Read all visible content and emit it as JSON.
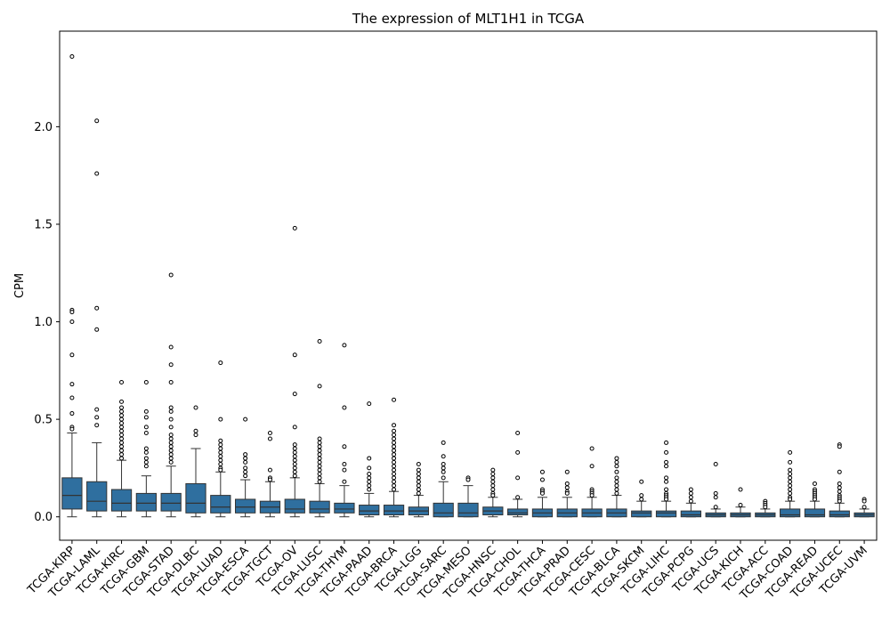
{
  "chart_data": {
    "type": "box",
    "title": "The expression of MLT1H1 in TCGA",
    "xlabel": "",
    "ylabel": "CPM",
    "ylim": [
      -0.12,
      2.49
    ],
    "y_ticks": [
      "0.0",
      "0.5",
      "1.0",
      "1.5",
      "2.0"
    ],
    "box_color": "#2f6f9f",
    "line_color": "#333333",
    "categories": [
      "TCGA-KIRP",
      "TCGA-LAML",
      "TCGA-KIRC",
      "TCGA-GBM",
      "TCGA-STAD",
      "TCGA-DLBC",
      "TCGA-LUAD",
      "TCGA-ESCA",
      "TCGA-TGCT",
      "TCGA-OV",
      "TCGA-LUSC",
      "TCGA-THYM",
      "TCGA-PAAD",
      "TCGA-BRCA",
      "TCGA-LGG",
      "TCGA-SARC",
      "TCGA-MESO",
      "TCGA-HNSC",
      "TCGA-CHOL",
      "TCGA-THCA",
      "TCGA-PRAD",
      "TCGA-CESC",
      "TCGA-BLCA",
      "TCGA-SKCM",
      "TCGA-LIHC",
      "TCGA-PCPG",
      "TCGA-UCS",
      "TCGA-KICH",
      "TCGA-ACC",
      "TCGA-COAD",
      "TCGA-READ",
      "TCGA-UCEC",
      "TCGA-UVM"
    ],
    "boxes": [
      {
        "min": 0.0,
        "q1": 0.04,
        "median": 0.11,
        "q3": 0.2,
        "max": 0.43,
        "outliers": [
          2.36,
          1.06,
          1.05,
          1.0,
          0.83,
          0.68,
          0.61,
          0.53,
          0.46,
          0.45
        ]
      },
      {
        "min": 0.0,
        "q1": 0.03,
        "median": 0.08,
        "q3": 0.18,
        "max": 0.38,
        "outliers": [
          2.03,
          1.76,
          1.07,
          0.96,
          0.55,
          0.51,
          0.47
        ]
      },
      {
        "min": 0.0,
        "q1": 0.03,
        "median": 0.07,
        "q3": 0.14,
        "max": 0.29,
        "outliers": [
          0.69,
          0.59,
          0.56,
          0.54,
          0.52,
          0.5,
          0.48,
          0.46,
          0.44,
          0.42,
          0.4,
          0.38,
          0.36,
          0.34,
          0.32,
          0.3
        ]
      },
      {
        "min": 0.0,
        "q1": 0.03,
        "median": 0.07,
        "q3": 0.12,
        "max": 0.21,
        "outliers": [
          0.69,
          0.54,
          0.51,
          0.46,
          0.43,
          0.35,
          0.33,
          0.3,
          0.28,
          0.26
        ]
      },
      {
        "min": 0.0,
        "q1": 0.03,
        "median": 0.07,
        "q3": 0.12,
        "max": 0.26,
        "outliers": [
          1.24,
          0.87,
          0.78,
          0.69,
          0.56,
          0.54,
          0.5,
          0.46,
          0.42,
          0.4,
          0.38,
          0.36,
          0.34,
          0.32,
          0.3,
          0.28
        ]
      },
      {
        "min": 0.0,
        "q1": 0.02,
        "median": 0.07,
        "q3": 0.17,
        "max": 0.35,
        "outliers": [
          0.56,
          0.44,
          0.42
        ]
      },
      {
        "min": 0.0,
        "q1": 0.02,
        "median": 0.05,
        "q3": 0.11,
        "max": 0.23,
        "outliers": [
          0.79,
          0.5,
          0.39,
          0.37,
          0.35,
          0.33,
          0.31,
          0.29,
          0.27,
          0.25,
          0.24
        ]
      },
      {
        "min": 0.0,
        "q1": 0.02,
        "median": 0.05,
        "q3": 0.09,
        "max": 0.19,
        "outliers": [
          0.5,
          0.32,
          0.3,
          0.28,
          0.25,
          0.23,
          0.21
        ]
      },
      {
        "min": 0.0,
        "q1": 0.02,
        "median": 0.05,
        "q3": 0.08,
        "max": 0.18,
        "outliers": [
          0.43,
          0.4,
          0.24,
          0.2,
          0.19
        ]
      },
      {
        "min": 0.0,
        "q1": 0.02,
        "median": 0.04,
        "q3": 0.09,
        "max": 0.2,
        "outliers": [
          1.48,
          0.83,
          0.63,
          0.46,
          0.37,
          0.35,
          0.33,
          0.31,
          0.29,
          0.27,
          0.25,
          0.23,
          0.21
        ]
      },
      {
        "min": 0.0,
        "q1": 0.02,
        "median": 0.04,
        "q3": 0.08,
        "max": 0.17,
        "outliers": [
          0.9,
          0.67,
          0.4,
          0.38,
          0.36,
          0.34,
          0.32,
          0.3,
          0.28,
          0.26,
          0.24,
          0.22,
          0.2,
          0.18
        ]
      },
      {
        "min": 0.0,
        "q1": 0.02,
        "median": 0.04,
        "q3": 0.07,
        "max": 0.16,
        "outliers": [
          0.88,
          0.56,
          0.36,
          0.27,
          0.24,
          0.18
        ]
      },
      {
        "min": 0.0,
        "q1": 0.01,
        "median": 0.03,
        "q3": 0.06,
        "max": 0.12,
        "outliers": [
          0.58,
          0.3,
          0.25,
          0.22,
          0.2,
          0.18,
          0.16,
          0.14
        ]
      },
      {
        "min": 0.0,
        "q1": 0.01,
        "median": 0.03,
        "q3": 0.06,
        "max": 0.13,
        "outliers": [
          0.6,
          0.47,
          0.44,
          0.42,
          0.4,
          0.38,
          0.36,
          0.34,
          0.32,
          0.3,
          0.28,
          0.26,
          0.24,
          0.22,
          0.2,
          0.18,
          0.16,
          0.14
        ]
      },
      {
        "min": 0.0,
        "q1": 0.01,
        "median": 0.03,
        "q3": 0.05,
        "max": 0.11,
        "outliers": [
          0.27,
          0.24,
          0.22,
          0.2,
          0.18,
          0.16,
          0.14,
          0.12
        ]
      },
      {
        "min": 0.0,
        "q1": 0.0,
        "median": 0.02,
        "q3": 0.07,
        "max": 0.18,
        "outliers": [
          0.38,
          0.31,
          0.27,
          0.25,
          0.23,
          0.2
        ]
      },
      {
        "min": 0.0,
        "q1": 0.0,
        "median": 0.02,
        "q3": 0.07,
        "max": 0.16,
        "outliers": [
          0.2,
          0.19
        ]
      },
      {
        "min": 0.0,
        "q1": 0.01,
        "median": 0.03,
        "q3": 0.05,
        "max": 0.1,
        "outliers": [
          0.24,
          0.22,
          0.2,
          0.18,
          0.16,
          0.14,
          0.12,
          0.11
        ]
      },
      {
        "min": 0.0,
        "q1": 0.01,
        "median": 0.02,
        "q3": 0.04,
        "max": 0.09,
        "outliers": [
          0.43,
          0.33,
          0.2,
          0.1
        ]
      },
      {
        "min": 0.0,
        "q1": 0.0,
        "median": 0.02,
        "q3": 0.04,
        "max": 0.1,
        "outliers": [
          0.23,
          0.19,
          0.14,
          0.13,
          0.12
        ]
      },
      {
        "min": 0.0,
        "q1": 0.0,
        "median": 0.02,
        "q3": 0.04,
        "max": 0.1,
        "outliers": [
          0.23,
          0.17,
          0.15,
          0.13,
          0.12
        ]
      },
      {
        "min": 0.0,
        "q1": 0.0,
        "median": 0.02,
        "q3": 0.04,
        "max": 0.1,
        "outliers": [
          0.35,
          0.26,
          0.14,
          0.13,
          0.12,
          0.11
        ]
      },
      {
        "min": 0.0,
        "q1": 0.0,
        "median": 0.02,
        "q3": 0.04,
        "max": 0.11,
        "outliers": [
          0.3,
          0.28,
          0.26,
          0.23,
          0.2,
          0.18,
          0.16,
          0.14,
          0.12
        ]
      },
      {
        "min": 0.0,
        "q1": 0.0,
        "median": 0.02,
        "q3": 0.03,
        "max": 0.08,
        "outliers": [
          0.18,
          0.11,
          0.09
        ]
      },
      {
        "min": 0.0,
        "q1": 0.0,
        "median": 0.02,
        "q3": 0.03,
        "max": 0.08,
        "outliers": [
          0.38,
          0.33,
          0.28,
          0.26,
          0.2,
          0.18,
          0.14,
          0.12,
          0.11,
          0.1,
          0.09
        ]
      },
      {
        "min": 0.0,
        "q1": 0.0,
        "median": 0.01,
        "q3": 0.03,
        "max": 0.07,
        "outliers": [
          0.14,
          0.12,
          0.1,
          0.08
        ]
      },
      {
        "min": 0.0,
        "q1": 0.0,
        "median": 0.01,
        "q3": 0.02,
        "max": 0.04,
        "outliers": [
          0.27,
          0.12,
          0.1,
          0.05
        ]
      },
      {
        "min": 0.0,
        "q1": 0.0,
        "median": 0.01,
        "q3": 0.02,
        "max": 0.05,
        "outliers": [
          0.14,
          0.06
        ]
      },
      {
        "min": 0.0,
        "q1": 0.0,
        "median": 0.01,
        "q3": 0.02,
        "max": 0.04,
        "outliers": [
          0.08,
          0.07,
          0.06,
          0.05
        ]
      },
      {
        "min": 0.0,
        "q1": 0.0,
        "median": 0.01,
        "q3": 0.04,
        "max": 0.08,
        "outliers": [
          0.33,
          0.28,
          0.24,
          0.22,
          0.2,
          0.18,
          0.16,
          0.14,
          0.12,
          0.1,
          0.09
        ]
      },
      {
        "min": 0.0,
        "q1": 0.0,
        "median": 0.01,
        "q3": 0.04,
        "max": 0.08,
        "outliers": [
          0.17,
          0.14,
          0.13,
          0.12,
          0.11,
          0.1,
          0.09
        ]
      },
      {
        "min": 0.0,
        "q1": 0.0,
        "median": 0.01,
        "q3": 0.03,
        "max": 0.07,
        "outliers": [
          0.37,
          0.36,
          0.23,
          0.17,
          0.15,
          0.13,
          0.11,
          0.1,
          0.09,
          0.08
        ]
      },
      {
        "min": 0.0,
        "q1": 0.0,
        "median": 0.01,
        "q3": 0.02,
        "max": 0.04,
        "outliers": [
          0.09,
          0.08,
          0.05
        ]
      }
    ]
  }
}
